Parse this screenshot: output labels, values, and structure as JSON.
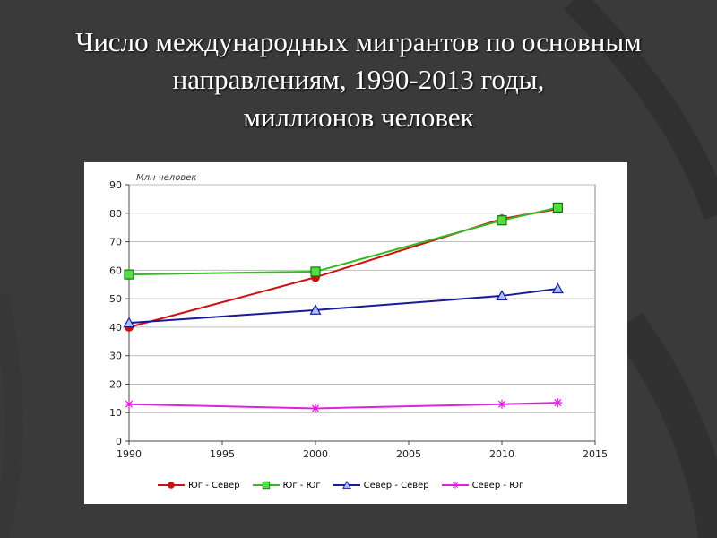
{
  "slide": {
    "title_lines": [
      "Число международных мигрантов по основным",
      "направлениям, 1990-2013 годы,",
      "миллионов человек"
    ]
  },
  "chart_data": {
    "type": "line",
    "ylabel": "Млн человек",
    "xlim": [
      1990,
      2015
    ],
    "ylim": [
      0,
      90
    ],
    "x_ticks": [
      1990,
      1995,
      2000,
      2005,
      2010,
      2015
    ],
    "y_ticks": [
      0,
      10,
      20,
      30,
      40,
      50,
      60,
      70,
      80,
      90
    ],
    "grid": "horizontal",
    "legend_position": "bottom",
    "series": [
      {
        "name": "Юг - Север",
        "color": "#cc1111",
        "marker": "circle",
        "x": [
          1990,
          2000,
          2010,
          2013
        ],
        "values": [
          40,
          57.5,
          78,
          81.5
        ]
      },
      {
        "name": "Юг - Юг",
        "color": "#33bb22",
        "marker": "square",
        "x": [
          1990,
          2000,
          2010,
          2013
        ],
        "values": [
          58.5,
          59.5,
          77.5,
          82
        ]
      },
      {
        "name": "Север - Север",
        "color": "#1a1a99",
        "marker": "triangle",
        "x": [
          1990,
          2000,
          2010,
          2013
        ],
        "values": [
          41.5,
          46,
          51,
          53.5
        ]
      },
      {
        "name": "Север - Юг",
        "color": "#dd22dd",
        "marker": "star",
        "x": [
          1990,
          2000,
          2010,
          2013
        ],
        "values": [
          13,
          11.5,
          13,
          13.5
        ]
      }
    ]
  }
}
